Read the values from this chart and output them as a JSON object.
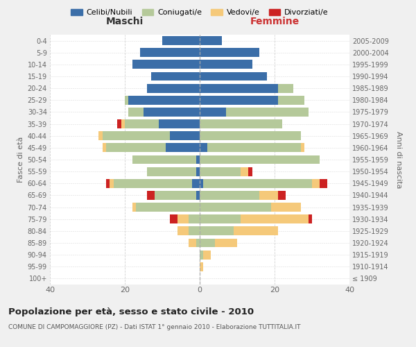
{
  "age_groups": [
    "100+",
    "95-99",
    "90-94",
    "85-89",
    "80-84",
    "75-79",
    "70-74",
    "65-69",
    "60-64",
    "55-59",
    "50-54",
    "45-49",
    "40-44",
    "35-39",
    "30-34",
    "25-29",
    "20-24",
    "15-19",
    "10-14",
    "5-9",
    "0-4"
  ],
  "birth_years": [
    "≤ 1909",
    "1910-1914",
    "1915-1919",
    "1920-1924",
    "1925-1929",
    "1930-1934",
    "1935-1939",
    "1940-1944",
    "1945-1949",
    "1950-1954",
    "1955-1959",
    "1960-1964",
    "1965-1969",
    "1970-1974",
    "1975-1979",
    "1980-1984",
    "1985-1989",
    "1990-1994",
    "1995-1999",
    "2000-2004",
    "2005-2009"
  ],
  "males": {
    "celibi": [
      0,
      0,
      0,
      0,
      0,
      0,
      0,
      1,
      2,
      1,
      1,
      9,
      8,
      11,
      15,
      19,
      14,
      13,
      18,
      16,
      10
    ],
    "coniugati": [
      0,
      0,
      0,
      1,
      3,
      3,
      17,
      11,
      21,
      13,
      17,
      16,
      18,
      9,
      4,
      1,
      0,
      0,
      0,
      0,
      0
    ],
    "vedovi": [
      0,
      0,
      0,
      2,
      3,
      3,
      1,
      0,
      1,
      0,
      0,
      1,
      1,
      1,
      0,
      0,
      0,
      0,
      0,
      0,
      0
    ],
    "divorziati": [
      0,
      0,
      0,
      0,
      0,
      2,
      0,
      2,
      1,
      0,
      0,
      0,
      0,
      1,
      0,
      0,
      0,
      0,
      0,
      0,
      0
    ]
  },
  "females": {
    "nubili": [
      0,
      0,
      0,
      0,
      0,
      0,
      0,
      0,
      1,
      0,
      0,
      2,
      0,
      0,
      7,
      21,
      21,
      18,
      14,
      16,
      6
    ],
    "coniugate": [
      0,
      0,
      1,
      4,
      9,
      11,
      19,
      16,
      29,
      11,
      32,
      25,
      27,
      22,
      22,
      7,
      4,
      0,
      0,
      0,
      0
    ],
    "vedove": [
      0,
      1,
      2,
      6,
      12,
      18,
      8,
      5,
      2,
      2,
      0,
      1,
      0,
      0,
      0,
      0,
      0,
      0,
      0,
      0,
      0
    ],
    "divorziate": [
      0,
      0,
      0,
      0,
      0,
      1,
      0,
      2,
      2,
      1,
      0,
      0,
      0,
      0,
      0,
      0,
      0,
      0,
      0,
      0,
      0
    ]
  },
  "colors": {
    "celibi": "#3b6ea8",
    "coniugati": "#b5c99a",
    "vedovi": "#f5c97a",
    "divorziati": "#cc2222"
  },
  "title": "Popolazione per età, sesso e stato civile - 2010",
  "subtitle": "COMUNE DI CAMPOMAGGIORE (PZ) - Dati ISTAT 1° gennaio 2010 - Elaborazione TUTTITALIA.IT",
  "xlabel_left": "Maschi",
  "xlabel_right": "Femmine",
  "ylabel_left": "Fasce di età",
  "ylabel_right": "Anni di nascita",
  "xlim": 40,
  "legend_labels": [
    "Celibi/Nubili",
    "Coniugati/e",
    "Vedovi/e",
    "Divorziati/e"
  ],
  "bg_color": "#f0f0f0",
  "plot_bg": "#ffffff",
  "grid_color": "#cccccc"
}
